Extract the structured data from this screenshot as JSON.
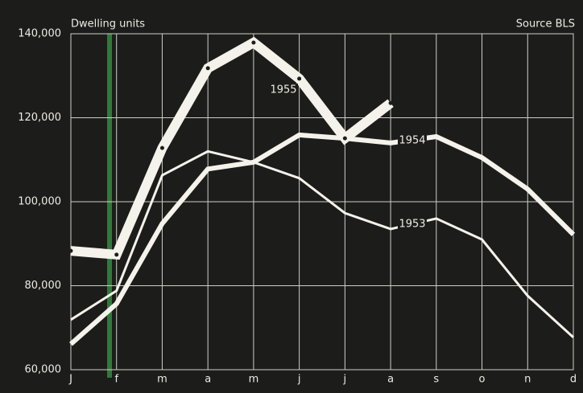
{
  "chart_data": {
    "type": "line",
    "title": "Dwelling units",
    "source": "Source BLS",
    "categories": [
      "J",
      "f",
      "m",
      "a",
      "m",
      "j",
      "j",
      "a",
      "s",
      "o",
      "n",
      "d"
    ],
    "series": [
      {
        "name": "1955",
        "color": "#f4f2ea",
        "line_width": 12,
        "markers": true,
        "values": [
          88300,
          87400,
          112800,
          131800,
          137900,
          129300,
          115100,
          123500,
          null,
          null,
          null,
          null
        ]
      },
      {
        "name": "1954",
        "color": "#f4f2ea",
        "line_width": 6,
        "markers": false,
        "values": [
          66100,
          75700,
          94800,
          107800,
          109400,
          115900,
          115100,
          114000,
          115500,
          110500,
          103000,
          92200
        ]
      },
      {
        "name": "1953",
        "color": "#f4f2ea",
        "line_width": 3,
        "markers": false,
        "values": [
          71900,
          78800,
          106300,
          112000,
          109400,
          105600,
          97300,
          93500,
          96000,
          91000,
          77600,
          67700
        ]
      }
    ],
    "ylim": [
      60000,
      140000
    ],
    "yticks": [
      {
        "value": 60000,
        "label": "60,000"
      },
      {
        "value": 80000,
        "label": "80,000"
      },
      {
        "value": 100000,
        "label": "100,000"
      },
      {
        "value": 120000,
        "label": "120,000"
      },
      {
        "value": 140000,
        "label": "140,000"
      }
    ],
    "grid": true
  }
}
